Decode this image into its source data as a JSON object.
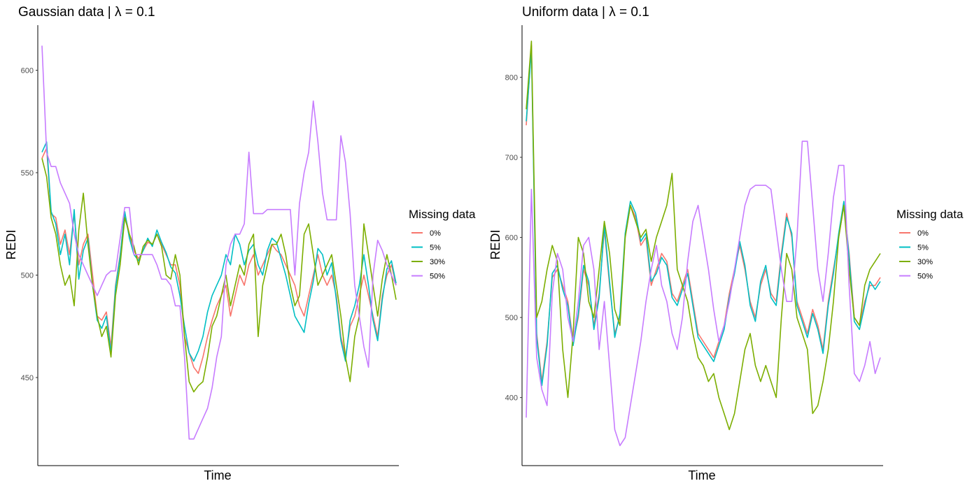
{
  "colors": {
    "0%": "#F8766D",
    "5%": "#00BFC4",
    "30%": "#7CAE00",
    "50%": "#C77CFF",
    "axis": "#000000",
    "tick_text": "#4d4d4d"
  },
  "chart_data": [
    {
      "type": "line",
      "title": "Gaussian data | λ = 0.1",
      "xlabel": "Time",
      "ylabel": "REDI",
      "ylim": [
        407,
        622
      ],
      "yticks": [
        450,
        500,
        550,
        600
      ],
      "ytick_labels": [
        "450",
        "500",
        "550",
        "600"
      ],
      "grid": false,
      "legend": {
        "title": "Missing data",
        "position": "right",
        "entries": [
          "0%",
          "5%",
          "30%",
          "50%"
        ]
      },
      "series": [
        {
          "name": "0%",
          "values": [
            557,
            562,
            530,
            528,
            515,
            522,
            510,
            530,
            505,
            515,
            520,
            500,
            480,
            478,
            482,
            465,
            495,
            510,
            530,
            520,
            512,
            508,
            512,
            516,
            515,
            520,
            515,
            510,
            505,
            505,
            495,
            470,
            462,
            455,
            452,
            460,
            470,
            478,
            485,
            490,
            495,
            480,
            490,
            500,
            495,
            505,
            510,
            500,
            505,
            510,
            515,
            512,
            510,
            505,
            500,
            495,
            485,
            480,
            490,
            500,
            510,
            500,
            495,
            500,
            490,
            470,
            460,
            475,
            480,
            490,
            500,
            490,
            480,
            470,
            490,
            500,
            505,
            495
          ]
        },
        {
          "name": "5%",
          "values": [
            560,
            565,
            531,
            525,
            510,
            520,
            505,
            532,
            498,
            512,
            518,
            495,
            478,
            474,
            480,
            462,
            494,
            509,
            531,
            518,
            510,
            507,
            512,
            518,
            514,
            522,
            516,
            511,
            504,
            501,
            490,
            475,
            462,
            458,
            463,
            470,
            482,
            490,
            495,
            500,
            510,
            505,
            520,
            515,
            505,
            512,
            515,
            505,
            500,
            512,
            518,
            516,
            508,
            500,
            490,
            480,
            476,
            472,
            486,
            497,
            513,
            510,
            500,
            506,
            488,
            468,
            458,
            478,
            485,
            495,
            510,
            495,
            478,
            468,
            488,
            503,
            507,
            496
          ]
        },
        {
          "name": "30%",
          "values": [
            557,
            548,
            528,
            520,
            505,
            495,
            500,
            485,
            522,
            540,
            515,
            495,
            480,
            470,
            475,
            460,
            490,
            505,
            528,
            520,
            514,
            505,
            514,
            517,
            515,
            520,
            514,
            500,
            498,
            510,
            500,
            470,
            448,
            443,
            446,
            448,
            460,
            475,
            480,
            490,
            500,
            485,
            495,
            505,
            500,
            515,
            520,
            470,
            495,
            505,
            515,
            515,
            520,
            510,
            495,
            485,
            490,
            520,
            525,
            510,
            495,
            500,
            505,
            510,
            495,
            480,
            460,
            448,
            470,
            480,
            525,
            510,
            495,
            480,
            498,
            510,
            500,
            488
          ]
        },
        {
          "name": "50%",
          "values": [
            612,
            560,
            553,
            553,
            545,
            540,
            535,
            520,
            510,
            505,
            500,
            495,
            490,
            495,
            500,
            502,
            502,
            518,
            533,
            533,
            510,
            510,
            510,
            510,
            510,
            505,
            498,
            498,
            495,
            485,
            485,
            460,
            420,
            420,
            425,
            430,
            435,
            445,
            460,
            470,
            505,
            515,
            520,
            520,
            525,
            560,
            530,
            530,
            530,
            532,
            532,
            532,
            532,
            532,
            532,
            500,
            535,
            550,
            560,
            585,
            565,
            540,
            527,
            527,
            527,
            568,
            555,
            530,
            495,
            480,
            465,
            455,
            500,
            517,
            512,
            505,
            500,
            495
          ]
        }
      ]
    },
    {
      "type": "line",
      "title": "Uniform data | λ = 0.1",
      "xlabel": "Time",
      "ylabel": "REDI",
      "ylim": [
        315,
        865
      ],
      "yticks": [
        400,
        500,
        600,
        700,
        800
      ],
      "ytick_labels": [
        "400",
        "500",
        "600",
        "700",
        "800"
      ],
      "grid": false,
      "legend": {
        "title": "Missing data",
        "position": "right",
        "entries": [
          "0%",
          "5%",
          "30%",
          "50%"
        ]
      },
      "series": [
        {
          "name": "0%",
          "values": [
            740,
            840,
            480,
            420,
            470,
            550,
            560,
            540,
            520,
            470,
            500,
            560,
            540,
            490,
            530,
            610,
            540,
            480,
            500,
            600,
            640,
            625,
            590,
            600,
            540,
            560,
            580,
            570,
            530,
            520,
            540,
            560,
            520,
            480,
            470,
            460,
            450,
            470,
            490,
            530,
            560,
            590,
            560,
            520,
            500,
            540,
            560,
            530,
            520,
            580,
            630,
            600,
            520,
            500,
            480,
            510,
            490,
            460,
            520,
            560,
            600,
            640,
            580,
            500,
            490,
            520,
            540,
            540,
            550
          ]
        },
        {
          "name": "5%",
          "values": [
            745,
            835,
            475,
            415,
            465,
            555,
            565,
            535,
            515,
            465,
            505,
            565,
            545,
            485,
            525,
            615,
            545,
            475,
            505,
            605,
            645,
            630,
            595,
            605,
            545,
            555,
            575,
            565,
            525,
            515,
            535,
            555,
            515,
            475,
            465,
            455,
            445,
            465,
            485,
            525,
            555,
            595,
            565,
            515,
            495,
            545,
            565,
            525,
            515,
            575,
            625,
            605,
            515,
            495,
            475,
            505,
            485,
            455,
            515,
            555,
            605,
            645,
            575,
            495,
            485,
            515,
            545,
            535,
            545
          ]
        },
        {
          "name": "30%",
          "values": [
            760,
            845,
            500,
            520,
            560,
            590,
            570,
            460,
            400,
            480,
            600,
            580,
            520,
            500,
            560,
            620,
            580,
            510,
            490,
            600,
            640,
            620,
            600,
            610,
            570,
            600,
            620,
            640,
            680,
            560,
            540,
            520,
            480,
            450,
            440,
            420,
            430,
            400,
            380,
            360,
            380,
            420,
            460,
            480,
            440,
            420,
            440,
            420,
            400,
            500,
            580,
            560,
            500,
            480,
            460,
            380,
            390,
            420,
            460,
            520,
            600,
            640,
            560,
            500,
            490,
            540,
            560,
            570,
            580
          ]
        },
        {
          "name": "50%",
          "values": [
            375,
            660,
            450,
            410,
            390,
            530,
            580,
            560,
            500,
            470,
            520,
            590,
            600,
            560,
            460,
            520,
            440,
            360,
            340,
            350,
            390,
            430,
            470,
            520,
            560,
            590,
            540,
            520,
            480,
            460,
            500,
            570,
            620,
            640,
            600,
            560,
            510,
            470,
            490,
            520,
            560,
            600,
            640,
            660,
            665,
            665,
            665,
            660,
            610,
            560,
            520,
            520,
            600,
            720,
            720,
            640,
            560,
            520,
            580,
            650,
            690,
            690,
            540,
            430,
            420,
            440,
            470,
            430,
            450
          ]
        }
      ]
    }
  ]
}
